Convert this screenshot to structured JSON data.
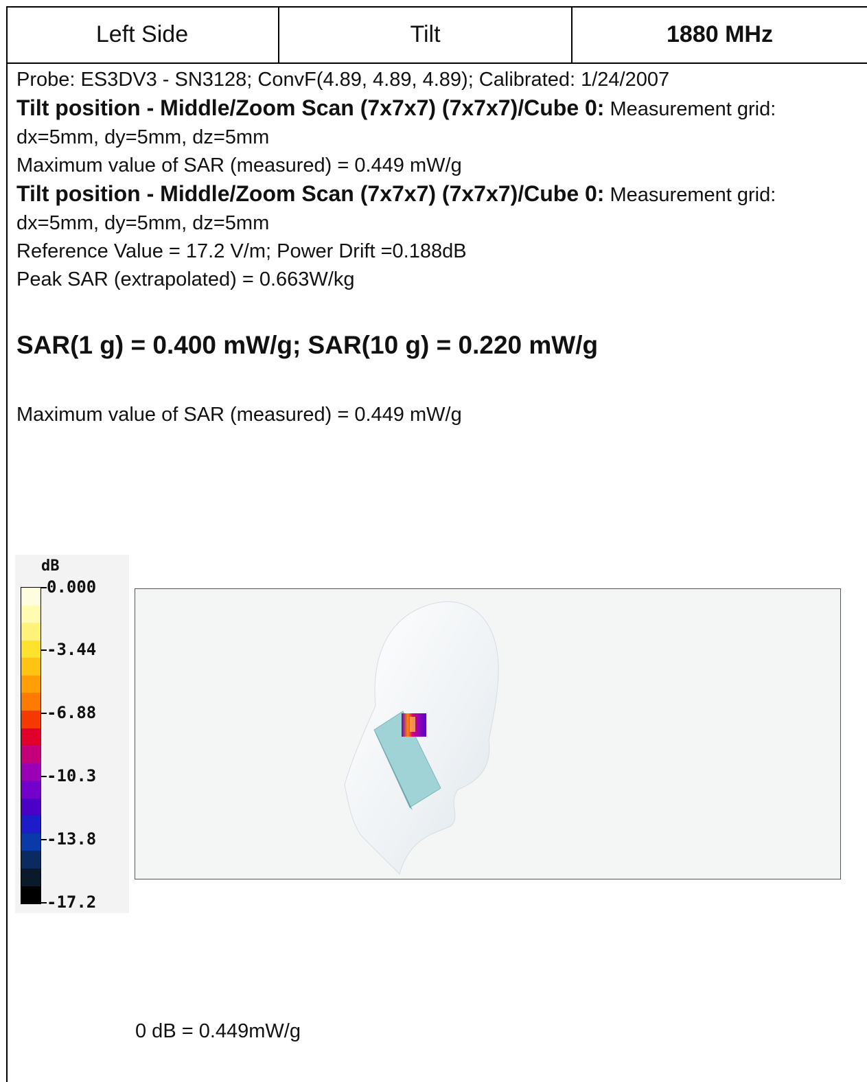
{
  "header": {
    "side": "Left Side",
    "position": "Tilt",
    "frequency": "1880 MHz"
  },
  "probe_line": "Probe: ES3DV3 - SN3128; ConvF(4.89, 4.89, 4.89); Calibrated: 1/24/2007",
  "scan1": {
    "title": "Tilt position - Middle/Zoom Scan (7x7x7) (7x7x7)/Cube 0:",
    "grid_label": " Measurement grid:",
    "grid_values": "dx=5mm, dy=5mm, dz=5mm",
    "max_sar": "Maximum value of SAR (measured) = 0.449 mW/g"
  },
  "scan2": {
    "title": "Tilt position - Middle/Zoom Scan (7x7x7) (7x7x7)/Cube 0:",
    "grid_label": " Measurement grid:",
    "grid_values": "dx=5mm, dy=5mm, dz=5mm",
    "reference": "Reference Value = 17.2 V/m; Power Drift =0.188dB",
    "peak": "Peak SAR (extrapolated) = 0.663W/kg"
  },
  "sar_summary": "SAR(1 g) = 0.400 mW/g; SAR(10 g) = 0.220 mW/g",
  "max_sar_repeat": "Maximum value of SAR (measured) = 0.449 mW/g",
  "legend": {
    "unit": "dB",
    "ticks": [
      "0.000",
      "-3.44",
      "-6.88",
      "-10.3",
      "-13.8",
      "-17.2"
    ],
    "colors": [
      "#fffde0",
      "#fffbb0",
      "#fff27a",
      "#ffe22e",
      "#ffc413",
      "#ff9f05",
      "#ff7a00",
      "#f43a00",
      "#e0002a",
      "#c3007a",
      "#9a00b4",
      "#7400cc",
      "#4b00c8",
      "#1c1cc8",
      "#0a3aa8",
      "#0a2a60",
      "#0a1a2a",
      "#000000"
    ]
  },
  "figure_note": "0 dB = 0.449mW/g"
}
